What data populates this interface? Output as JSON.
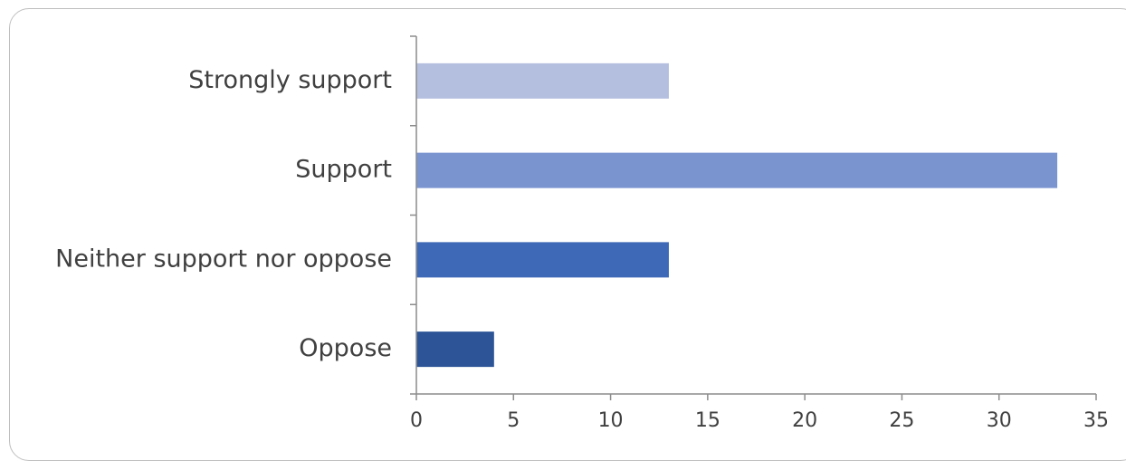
{
  "chart_data": {
    "type": "bar",
    "orientation": "horizontal",
    "title": "",
    "xlabel": "",
    "ylabel": "",
    "categories": [
      "Strongly support",
      "Support",
      "Neither support nor oppose",
      "Oppose"
    ],
    "values": [
      13,
      33,
      13,
      4
    ],
    "colors": [
      "#b4bfe0",
      "#7a94d0",
      "#3d69b7",
      "#2d5497"
    ],
    "xlim": [
      0,
      35
    ],
    "xticks": [
      "0",
      "5",
      "10",
      "15",
      "20",
      "25",
      "30",
      "35"
    ],
    "grid": false,
    "legend": "none"
  }
}
